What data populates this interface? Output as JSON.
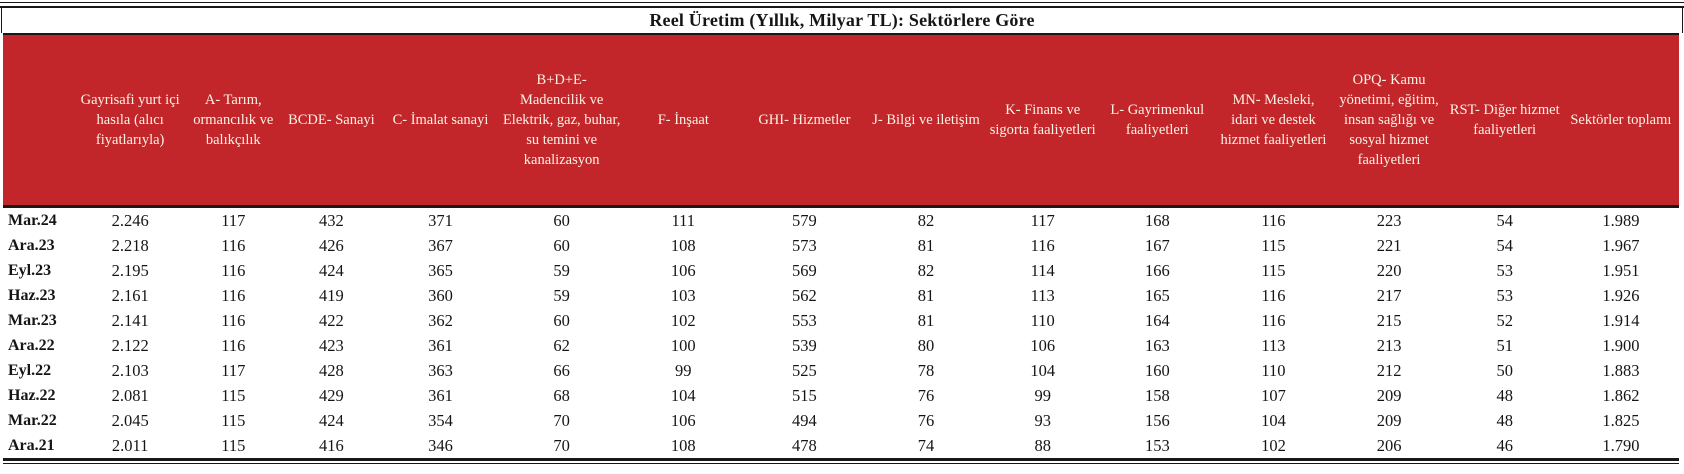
{
  "title": "Reel Üretim (Yıllık, Milyar TL): Sektörlere Göre",
  "theme": {
    "header_bg": "#C2262B",
    "header_text": "#FBF2E3",
    "rule_color": "#181818",
    "body_bg": "#FFFFFF",
    "body_text": "#151515"
  },
  "chart_data": {
    "type": "table",
    "title": "Reel Üretim (Yıllık, Milyar TL): Sektörlere Göre",
    "row_header": "",
    "columns": [
      "Gayrisafi yurt içi hasıla (alıcı fiyatlarıyla)",
      "A- Tarım, ormancılık ve balıkçılık",
      "BCDE- Sanayi",
      "C- İmalat sanayi",
      "B+D+E- Madencilik ve Elektrik, gaz, buhar, su temini ve kanalizasyon",
      "F- İnşaat",
      "GHI- Hizmetler",
      "J- Bilgi ve iletişim",
      "K- Finans ve sigorta faaliyetleri",
      "L- Gayrimenkul faaliyetleri",
      "MN- Mesleki, idari ve destek hizmet faaliyetleri",
      "OPQ- Kamu yönetimi, eğitim, insan sağlığı ve sosyal hizmet faaliyetleri",
      "RST- Diğer hizmet faaliyetleri",
      "Sektörler toplamı"
    ],
    "rows": [
      {
        "period": "Mar.24",
        "values": [
          "2.246",
          "117",
          "432",
          "371",
          "60",
          "111",
          "579",
          "82",
          "117",
          "168",
          "116",
          "223",
          "54",
          "1.989"
        ]
      },
      {
        "period": "Ara.23",
        "values": [
          "2.218",
          "116",
          "426",
          "367",
          "60",
          "108",
          "573",
          "81",
          "116",
          "167",
          "115",
          "221",
          "54",
          "1.967"
        ]
      },
      {
        "period": "Eyl.23",
        "values": [
          "2.195",
          "116",
          "424",
          "365",
          "59",
          "106",
          "569",
          "82",
          "114",
          "166",
          "115",
          "220",
          "53",
          "1.951"
        ]
      },
      {
        "period": "Haz.23",
        "values": [
          "2.161",
          "116",
          "419",
          "360",
          "59",
          "103",
          "562",
          "81",
          "113",
          "165",
          "116",
          "217",
          "53",
          "1.926"
        ]
      },
      {
        "period": "Mar.23",
        "values": [
          "2.141",
          "116",
          "422",
          "362",
          "60",
          "102",
          "553",
          "81",
          "110",
          "164",
          "116",
          "215",
          "52",
          "1.914"
        ]
      },
      {
        "period": "Ara.22",
        "values": [
          "2.122",
          "116",
          "423",
          "361",
          "62",
          "100",
          "539",
          "80",
          "106",
          "163",
          "113",
          "213",
          "51",
          "1.900"
        ]
      },
      {
        "period": "Eyl.22",
        "values": [
          "2.103",
          "117",
          "428",
          "363",
          "66",
          "99",
          "525",
          "78",
          "104",
          "160",
          "110",
          "212",
          "50",
          "1.883"
        ]
      },
      {
        "period": "Haz.22",
        "values": [
          "2.081",
          "115",
          "429",
          "361",
          "68",
          "104",
          "515",
          "76",
          "99",
          "158",
          "107",
          "209",
          "48",
          "1.862"
        ]
      },
      {
        "period": "Mar.22",
        "values": [
          "2.045",
          "115",
          "424",
          "354",
          "70",
          "106",
          "494",
          "76",
          "93",
          "156",
          "104",
          "209",
          "48",
          "1.825"
        ]
      },
      {
        "period": "Ara.21",
        "values": [
          "2.011",
          "115",
          "416",
          "346",
          "70",
          "108",
          "478",
          "74",
          "88",
          "153",
          "102",
          "206",
          "46",
          "1.790"
        ]
      }
    ]
  }
}
